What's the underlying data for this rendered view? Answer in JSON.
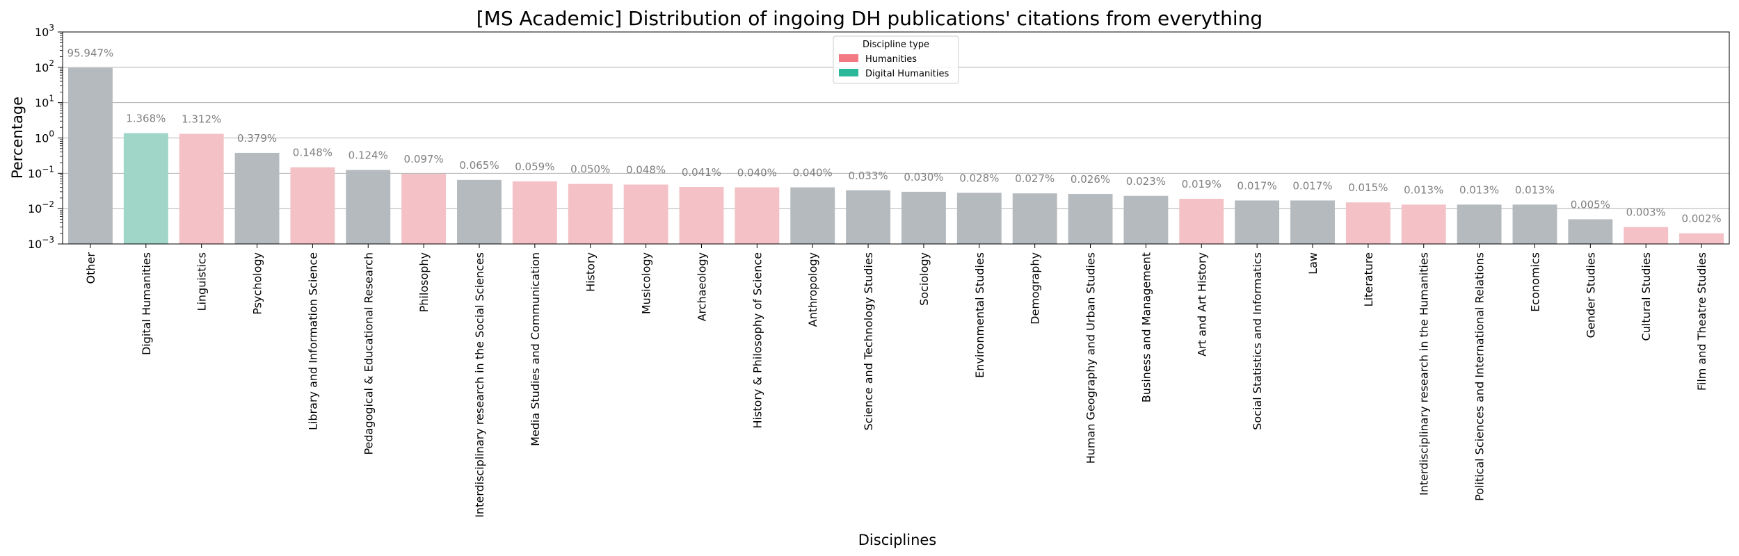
{
  "chart_data": {
    "type": "bar",
    "title": "[MS Academic] Distribution of ingoing DH publications' citations from everything",
    "xlabel": "Disciplines",
    "ylabel": "Percentage",
    "yscale": "log",
    "ylim": [
      0.001,
      1000
    ],
    "yticks": [
      {
        "value": 0.001,
        "base": "10",
        "exp": "−3"
      },
      {
        "value": 0.01,
        "base": "10",
        "exp": "−2"
      },
      {
        "value": 0.1,
        "base": "10",
        "exp": "−1"
      },
      {
        "value": 1,
        "base": "10",
        "exp": "0"
      },
      {
        "value": 10,
        "base": "10",
        "exp": "1"
      },
      {
        "value": 100,
        "base": "10",
        "exp": "2"
      },
      {
        "value": 1000,
        "base": "10",
        "exp": "3"
      }
    ],
    "grid": "horizontal",
    "legend": {
      "title": "Discipline type",
      "position": "top-center",
      "entries": [
        {
          "label": "Humanities",
          "color": "#f37a85"
        },
        {
          "label": "Digital Humanities",
          "color": "#2bb99a"
        }
      ]
    },
    "colors": {
      "Humanities": "#f4c1c6",
      "Digital Humanities": "#9fd6c8",
      "Other": "#b5babe"
    },
    "bars": [
      {
        "category": "Other",
        "value": 95.947,
        "label": "95.947%",
        "group": "Other"
      },
      {
        "category": "Digital Humanities",
        "value": 1.368,
        "label": "1.368%",
        "group": "Digital Humanities"
      },
      {
        "category": "Linguistics",
        "value": 1.312,
        "label": "1.312%",
        "group": "Humanities"
      },
      {
        "category": "Psychology",
        "value": 0.379,
        "label": "0.379%",
        "group": "Other"
      },
      {
        "category": "Library and Information Science",
        "value": 0.148,
        "label": "0.148%",
        "group": "Humanities"
      },
      {
        "category": "Pedagogical & Educational Research",
        "value": 0.124,
        "label": "0.124%",
        "group": "Other"
      },
      {
        "category": "Philosophy",
        "value": 0.097,
        "label": "0.097%",
        "group": "Humanities"
      },
      {
        "category": "Interdisciplinary research in the Social Sciences",
        "value": 0.065,
        "label": "0.065%",
        "group": "Other"
      },
      {
        "category": "Media Studies and Communication",
        "value": 0.059,
        "label": "0.059%",
        "group": "Humanities"
      },
      {
        "category": "History",
        "value": 0.05,
        "label": "0.050%",
        "group": "Humanities"
      },
      {
        "category": "Musicology",
        "value": 0.048,
        "label": "0.048%",
        "group": "Humanities"
      },
      {
        "category": "Archaeology",
        "value": 0.041,
        "label": "0.041%",
        "group": "Humanities"
      },
      {
        "category": "History & Philosophy of Science",
        "value": 0.04,
        "label": "0.040%",
        "group": "Humanities"
      },
      {
        "category": "Anthropology",
        "value": 0.04,
        "label": "0.040%",
        "group": "Other"
      },
      {
        "category": "Science and Technology Studies",
        "value": 0.033,
        "label": "0.033%",
        "group": "Other"
      },
      {
        "category": "Sociology",
        "value": 0.03,
        "label": "0.030%",
        "group": "Other"
      },
      {
        "category": "Environmental Studies",
        "value": 0.028,
        "label": "0.028%",
        "group": "Other"
      },
      {
        "category": "Demography",
        "value": 0.027,
        "label": "0.027%",
        "group": "Other"
      },
      {
        "category": "Human Geography and Urban Studies",
        "value": 0.026,
        "label": "0.026%",
        "group": "Other"
      },
      {
        "category": "Business and Management",
        "value": 0.023,
        "label": "0.023%",
        "group": "Other"
      },
      {
        "category": "Art and Art History",
        "value": 0.019,
        "label": "0.019%",
        "group": "Humanities"
      },
      {
        "category": "Social Statistics and Informatics",
        "value": 0.017,
        "label": "0.017%",
        "group": "Other"
      },
      {
        "category": "Law",
        "value": 0.017,
        "label": "0.017%",
        "group": "Other"
      },
      {
        "category": "Literature",
        "value": 0.015,
        "label": "0.015%",
        "group": "Humanities"
      },
      {
        "category": "Interdisciplinary research in the Humanities",
        "value": 0.013,
        "label": "0.013%",
        "group": "Humanities"
      },
      {
        "category": "Political Sciences and International Relations",
        "value": 0.013,
        "label": "0.013%",
        "group": "Other"
      },
      {
        "category": "Economics",
        "value": 0.013,
        "label": "0.013%",
        "group": "Other"
      },
      {
        "category": "Gender Studies",
        "value": 0.005,
        "label": "0.005%",
        "group": "Other"
      },
      {
        "category": "Cultural Studies",
        "value": 0.003,
        "label": "0.003%",
        "group": "Humanities"
      },
      {
        "category": "Film and Theatre Studies",
        "value": 0.002,
        "label": "0.002%",
        "group": "Humanities"
      }
    ]
  }
}
